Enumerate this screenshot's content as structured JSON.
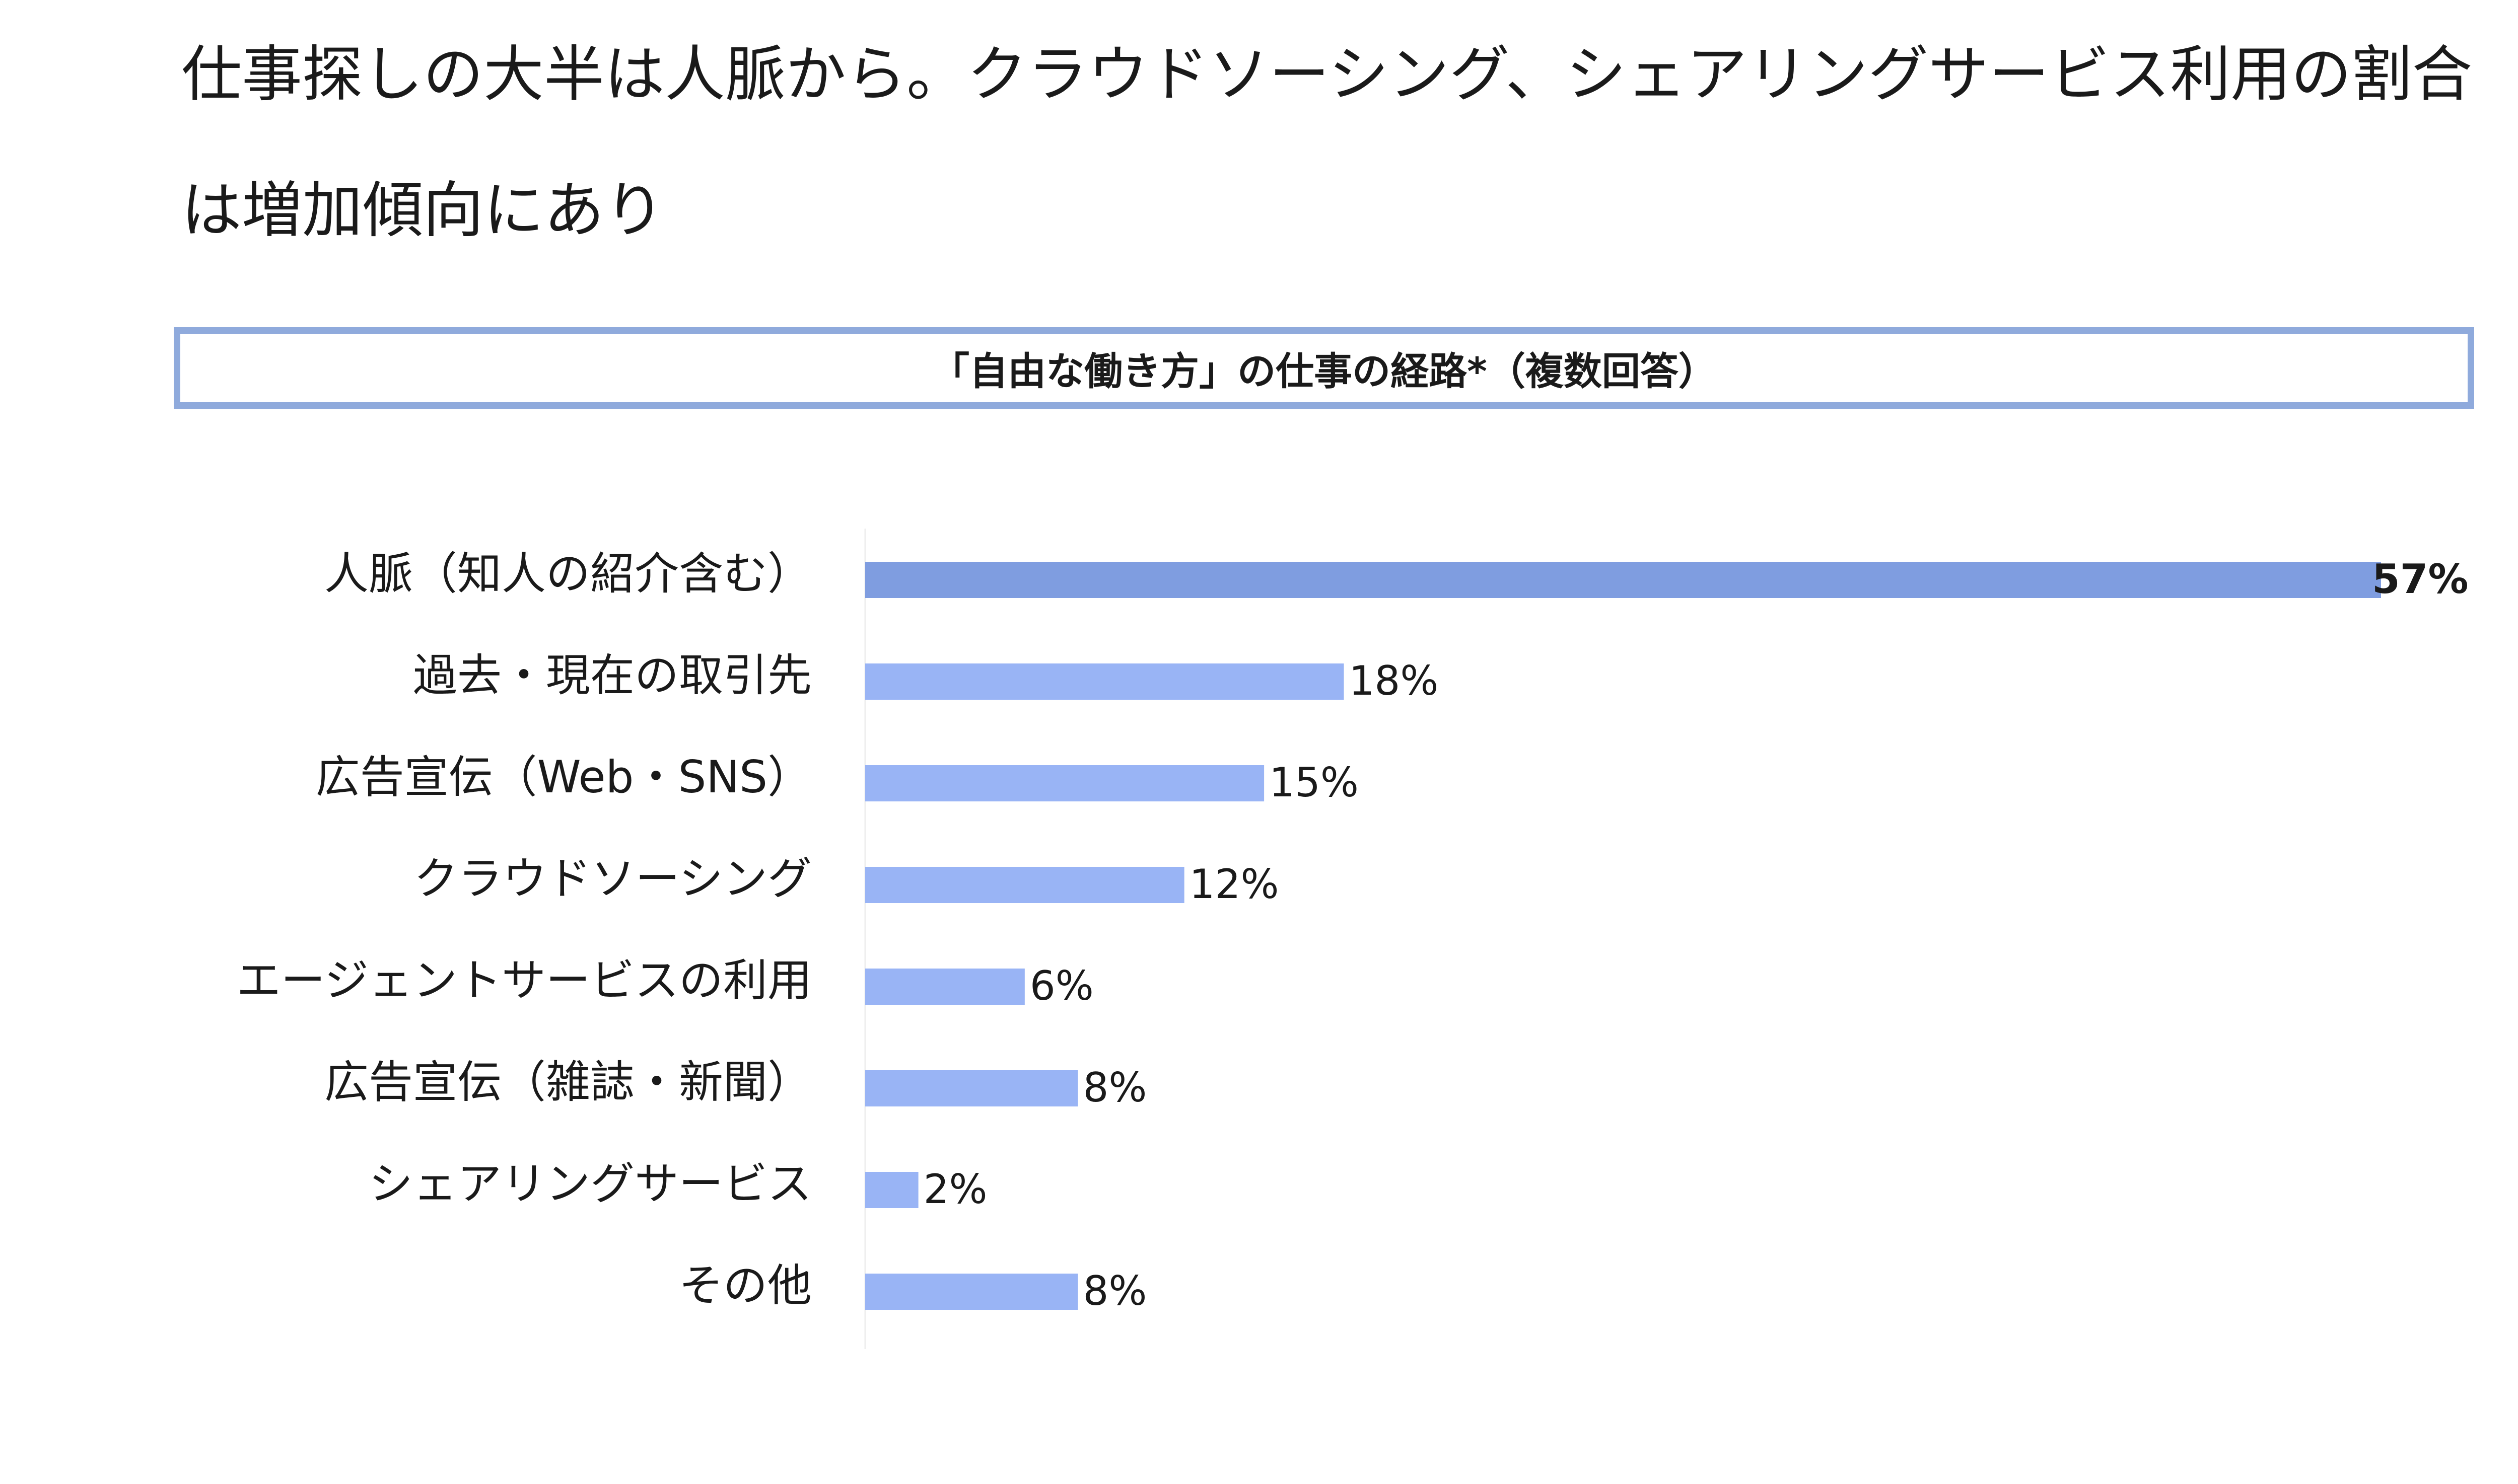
{
  "slide": {
    "title": "仕事探しの大半は人脈から。クラウドソーシング、シェアリングサービス利用の割合は増加傾向にあり"
  },
  "chart_data": {
    "type": "bar",
    "orientation": "horizontal",
    "title": "「自由な働き方」の仕事の経路*（複数回答）",
    "categories": [
      "人脈（知人の紹介含む）",
      "過去・現在の取引先",
      "広告宣伝（Web・SNS）",
      "クラウドソーシング",
      "エージェントサービスの利用",
      "広告宣伝（雑誌・新聞）",
      "シェアリングサービス",
      "その他"
    ],
    "values": [
      57,
      18,
      15,
      12,
      6,
      8,
      2,
      8
    ],
    "value_labels": [
      "57%",
      "18%",
      "15%",
      "12%",
      "6%",
      "8%",
      "2%",
      "8%"
    ],
    "unit": "%",
    "xlim": [
      0,
      57
    ],
    "grid": false,
    "legend": "none",
    "colors": {
      "highlight": "#7f9de0",
      "default": "#99b4f5",
      "box_border": "#8faadc"
    },
    "highlight_index": 0
  }
}
